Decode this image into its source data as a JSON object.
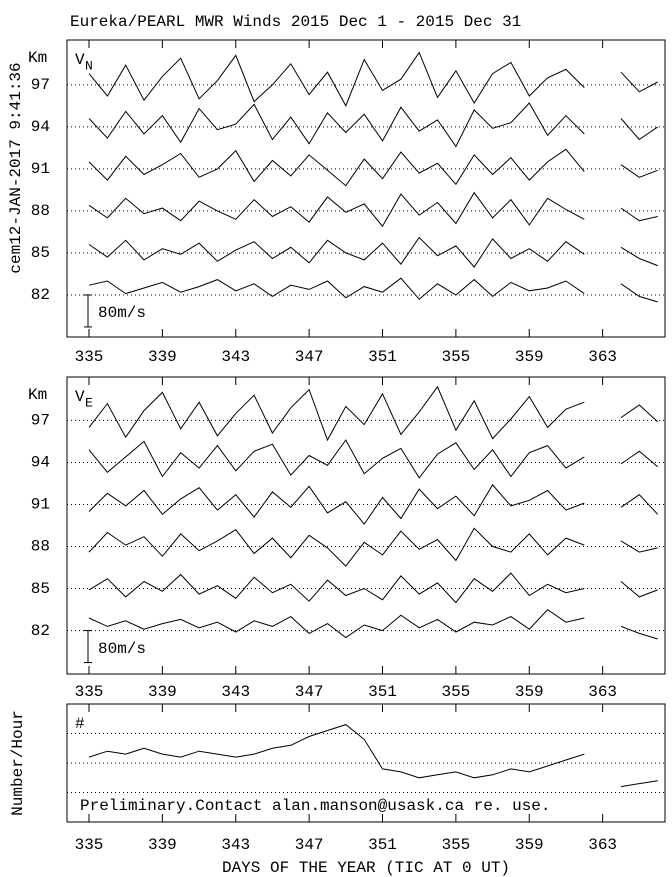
{
  "chart_data": [
    {
      "type": "line",
      "title": "Eureka/PEARL MWR Winds 2015 Dec  1 - 2015 Dec 31",
      "annotations": [
        "cem12-JAN-2017  9:41:36",
        "80m/s"
      ],
      "label": "V",
      "label_sub": "N",
      "ylabel": "Km",
      "x": [
        335,
        336,
        337,
        338,
        339,
        340,
        341,
        342,
        343,
        344,
        345,
        346,
        347,
        348,
        349,
        350,
        351,
        352,
        353,
        354,
        355,
        356,
        357,
        358,
        359,
        360,
        361,
        362,
        363,
        364,
        365,
        366
      ],
      "xlim": [
        333.8,
        366.4
      ],
      "xticks": [
        335,
        339,
        343,
        347,
        351,
        355,
        359,
        363
      ],
      "ylim": [
        79,
        100.2
      ],
      "yticks": [
        82,
        85,
        88,
        91,
        94,
        97
      ],
      "grid": true,
      "series": [
        {
          "color": "#000000",
          "values": [
            97.8,
            96.2,
            98.4,
            95.9,
            97.6,
            98.9,
            96.0,
            97.3,
            99.1,
            95.8,
            97.0,
            98.5,
            96.3,
            97.9,
            95.5,
            98.8,
            96.6,
            97.4,
            99.3,
            96.1,
            98.0,
            95.7,
            97.8,
            98.6,
            96.2,
            97.5,
            98.1,
            96.8,
            null,
            97.9,
            96.5,
            97.2
          ]
        },
        {
          "color": "#000000",
          "values": [
            94.6,
            93.2,
            95.1,
            93.5,
            94.8,
            92.9,
            95.3,
            93.8,
            94.2,
            95.6,
            93.1,
            94.7,
            92.8,
            95.0,
            93.6,
            94.9,
            93.0,
            95.4,
            93.7,
            94.5,
            92.6,
            95.2,
            93.9,
            94.3,
            95.7,
            93.4,
            94.8,
            93.5,
            null,
            94.6,
            93.1,
            94.0
          ]
        },
        {
          "color": "#000000",
          "values": [
            91.5,
            90.2,
            91.9,
            90.6,
            91.3,
            92.1,
            90.4,
            91.0,
            92.3,
            90.1,
            91.6,
            90.5,
            92.0,
            90.9,
            89.8,
            91.7,
            90.3,
            92.2,
            90.7,
            91.4,
            89.9,
            92.0,
            90.6,
            91.8,
            90.2,
            91.5,
            92.4,
            90.8,
            null,
            91.3,
            90.4,
            90.9
          ]
        },
        {
          "color": "#000000",
          "values": [
            88.4,
            87.5,
            88.9,
            87.8,
            88.2,
            87.3,
            88.7,
            88.0,
            87.4,
            88.8,
            87.6,
            88.3,
            87.2,
            89.0,
            87.9,
            88.5,
            86.9,
            89.2,
            87.7,
            88.6,
            87.1,
            89.3,
            87.5,
            88.8,
            87.0,
            88.9,
            88.1,
            87.4,
            null,
            88.2,
            87.3,
            87.6
          ]
        },
        {
          "color": "#000000",
          "values": [
            85.6,
            84.7,
            85.9,
            84.5,
            85.3,
            84.9,
            85.7,
            84.4,
            85.2,
            85.8,
            84.6,
            85.4,
            84.3,
            85.9,
            85.0,
            84.5,
            85.7,
            84.2,
            86.1,
            84.8,
            85.5,
            84.0,
            86.0,
            84.6,
            85.3,
            84.4,
            85.8,
            84.9,
            null,
            85.4,
            84.6,
            84.1
          ]
        },
        {
          "color": "#000000",
          "values": [
            82.7,
            83.0,
            82.1,
            82.5,
            82.9,
            82.2,
            82.6,
            83.1,
            82.3,
            82.8,
            81.9,
            82.7,
            82.4,
            83.0,
            81.8,
            82.6,
            82.2,
            83.2,
            81.7,
            82.8,
            82.0,
            83.1,
            81.9,
            82.9,
            82.3,
            82.5,
            83.0,
            82.1,
            null,
            82.8,
            81.9,
            81.5
          ]
        }
      ]
    },
    {
      "type": "line",
      "label": "V",
      "label_sub": "E",
      "ylabel": "Km",
      "annotations": [
        "80m/s"
      ],
      "x": [
        335,
        336,
        337,
        338,
        339,
        340,
        341,
        342,
        343,
        344,
        345,
        346,
        347,
        348,
        349,
        350,
        351,
        352,
        353,
        354,
        355,
        356,
        357,
        358,
        359,
        360,
        361,
        362,
        363,
        364,
        365,
        366
      ],
      "xlim": [
        333.8,
        366.4
      ],
      "xticks": [
        335,
        339,
        343,
        347,
        351,
        355,
        359,
        363
      ],
      "ylim": [
        78.9,
        100.1
      ],
      "yticks": [
        82,
        85,
        88,
        91,
        94,
        97
      ],
      "grid": true,
      "series": [
        {
          "color": "#000000",
          "values": [
            96.5,
            98.2,
            95.8,
            97.7,
            99.0,
            96.4,
            98.3,
            95.9,
            97.5,
            98.8,
            96.1,
            97.9,
            99.2,
            95.6,
            98.0,
            96.7,
            98.9,
            96.0,
            97.6,
            99.4,
            96.3,
            98.4,
            95.7,
            97.1,
            98.7,
            96.5,
            97.8,
            98.3,
            null,
            97.2,
            98.1,
            96.9
          ]
        },
        {
          "color": "#000000",
          "values": [
            94.9,
            93.3,
            94.4,
            95.5,
            93.0,
            94.7,
            93.6,
            95.2,
            93.4,
            94.8,
            95.3,
            93.1,
            94.5,
            93.8,
            95.6,
            93.2,
            94.3,
            95.0,
            92.9,
            94.6,
            95.4,
            93.5,
            94.9,
            93.0,
            94.7,
            95.2,
            93.6,
            94.4,
            null,
            93.9,
            94.8,
            93.7
          ]
        },
        {
          "color": "#000000",
          "values": [
            90.5,
            91.8,
            90.9,
            92.0,
            90.3,
            91.4,
            92.2,
            90.6,
            91.7,
            90.1,
            91.9,
            90.8,
            92.3,
            90.4,
            91.2,
            89.6,
            91.5,
            90.0,
            92.1,
            90.7,
            91.6,
            90.2,
            92.4,
            90.9,
            91.3,
            92.0,
            90.6,
            91.1,
            null,
            90.8,
            91.7,
            90.3
          ]
        },
        {
          "color": "#000000",
          "values": [
            87.6,
            89.0,
            88.1,
            88.7,
            87.3,
            88.9,
            87.7,
            88.4,
            89.2,
            87.5,
            88.6,
            87.2,
            88.8,
            87.9,
            86.6,
            88.3,
            87.4,
            89.1,
            87.8,
            88.5,
            87.0,
            89.3,
            88.0,
            87.6,
            88.9,
            87.4,
            88.6,
            88.1,
            null,
            88.4,
            87.6,
            87.9
          ]
        },
        {
          "color": "#000000",
          "values": [
            84.9,
            85.7,
            84.4,
            85.5,
            84.8,
            86.0,
            84.6,
            85.2,
            84.3,
            85.8,
            84.7,
            85.3,
            84.1,
            85.6,
            84.5,
            85.0,
            84.2,
            85.9,
            84.6,
            85.4,
            84.0,
            85.7,
            84.8,
            86.1,
            84.5,
            85.3,
            84.7,
            85.0,
            null,
            85.5,
            84.4,
            84.9
          ]
        },
        {
          "color": "#000000",
          "values": [
            82.9,
            82.3,
            82.7,
            82.1,
            82.5,
            82.8,
            82.2,
            82.6,
            81.9,
            82.7,
            82.3,
            83.0,
            81.8,
            82.5,
            81.5,
            82.4,
            82.0,
            83.1,
            82.2,
            82.8,
            81.9,
            82.6,
            82.4,
            83.0,
            82.1,
            83.5,
            82.6,
            82.9,
            null,
            82.3,
            81.8,
            81.4
          ]
        }
      ]
    },
    {
      "type": "line",
      "label": "#",
      "ylabel": "Number/Hour",
      "xlabel": "DAYS OF THE YEAR (TIC AT 0 UT)",
      "annotations": [
        "Preliminary.Contact alan.manson@usask.ca re. use."
      ],
      "x": [
        335,
        336,
        337,
        338,
        339,
        340,
        341,
        342,
        343,
        344,
        345,
        346,
        347,
        348,
        349,
        350,
        351,
        352,
        353,
        354,
        355,
        356,
        357,
        358,
        359,
        360,
        361,
        362,
        363,
        364,
        365,
        366
      ],
      "xlim": [
        333.8,
        366.4
      ],
      "xticks": [
        335,
        339,
        343,
        347,
        351,
        355,
        359,
        363
      ],
      "ylim": [
        0,
        4
      ],
      "grid_lines": [
        1,
        2,
        3
      ],
      "series": [
        {
          "color": "#000000",
          "values": [
            2.2,
            2.4,
            2.3,
            2.5,
            2.3,
            2.2,
            2.4,
            2.3,
            2.2,
            2.3,
            2.5,
            2.6,
            2.9,
            3.1,
            3.3,
            2.8,
            1.8,
            1.7,
            1.5,
            1.6,
            1.7,
            1.5,
            1.6,
            1.8,
            1.7,
            1.9,
            2.1,
            2.3,
            null,
            1.2,
            1.3,
            1.4
          ]
        }
      ]
    }
  ]
}
